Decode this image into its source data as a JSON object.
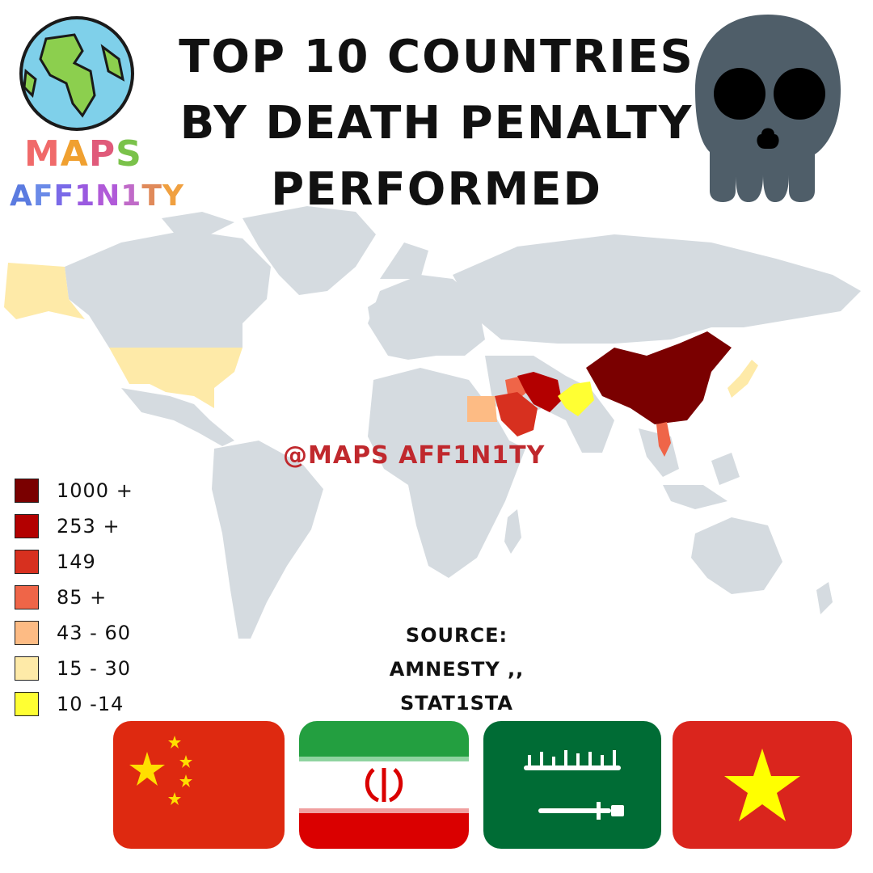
{
  "title": {
    "line1": "TOP 10 COUNTRIES",
    "line2": "BY DEATH PENALTY",
    "line3": "PERFORMED"
  },
  "brand": {
    "maps": [
      "M",
      "A",
      "P",
      "S"
    ],
    "maps_colors": [
      "#f06a6a",
      "#f0a030",
      "#e05a7a",
      "#7ac24a"
    ],
    "affinity": [
      "A",
      "F",
      "F",
      "1",
      "N",
      "1",
      "T",
      "Y"
    ],
    "affinity_colors": [
      "#5b7be0",
      "#6a8ae8",
      "#7a6ae8",
      "#9a5ae0",
      "#b05ad8",
      "#c06ac8",
      "#e08a5a",
      "#f0a040"
    ]
  },
  "watermark": "@MAPS AFF1N1TY",
  "source": {
    "line1": "SOURCE:",
    "line2": "AMNESTY ,, STAT1STA"
  },
  "legend": [
    {
      "label": "1000 +",
      "color": "#7a0000"
    },
    {
      "label": "253 +",
      "color": "#b30000"
    },
    {
      "label": "149",
      "color": "#d7301f"
    },
    {
      "label": "85 +",
      "color": "#ef6548"
    },
    {
      "label": "43 - 60",
      "color": "#fdbb84"
    },
    {
      "label": "15 - 30",
      "color": "#feeaa8"
    },
    {
      "label": "10 -14",
      "color": "#ffff33"
    }
  ],
  "map": {
    "land_color": "#d5dbe0",
    "highlighted_countries": [
      {
        "country": "China",
        "color": "#7a0000"
      },
      {
        "country": "Iran",
        "color": "#b30000"
      },
      {
        "country": "Saudi Arabia",
        "color": "#d7301f"
      },
      {
        "country": "Vietnam",
        "color": "#ef6548"
      },
      {
        "country": "Iraq",
        "color": "#ef6548"
      },
      {
        "country": "Egypt",
        "color": "#fdbb84"
      },
      {
        "country": "United States",
        "color": "#feeaa8"
      },
      {
        "country": "Japan",
        "color": "#feeaa8"
      },
      {
        "country": "Pakistan",
        "color": "#ffff33"
      }
    ]
  },
  "icons": {
    "globe": "globe-icon",
    "skull": "skull-icon"
  },
  "flags": [
    "flag-china",
    "flag-iran",
    "flag-saudi-arabia",
    "flag-vietnam"
  ],
  "colors": {
    "skull": "#4f5e69",
    "flag_red": "#de2910",
    "flag_yellow": "#ffde00",
    "iran_green": "#239f40",
    "iran_red": "#da0000",
    "saudi_green": "#006c35",
    "vietnam_red": "#da251d",
    "vietnam_star": "#ffff00"
  }
}
